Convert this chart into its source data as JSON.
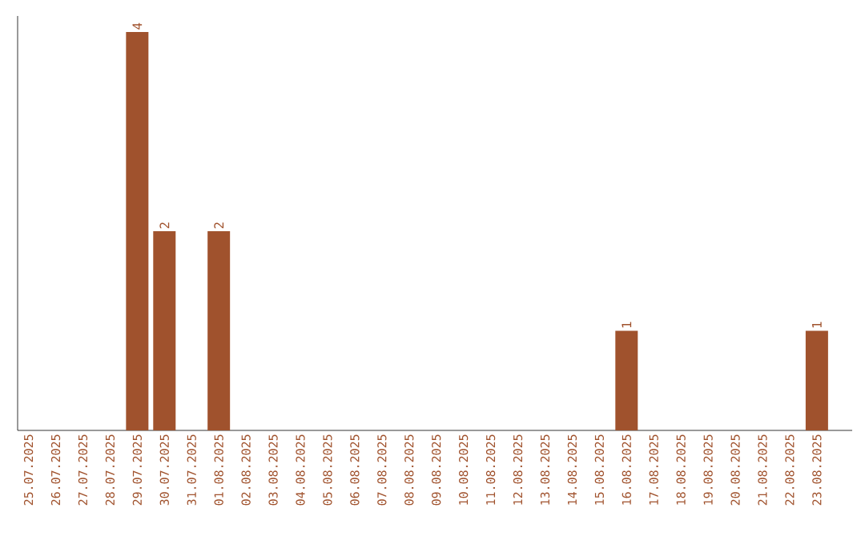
{
  "chart_data": {
    "type": "bar",
    "categories": [
      "25.07.2025",
      "26.07.2025",
      "27.07.2025",
      "28.07.2025",
      "29.07.2025",
      "30.07.2025",
      "31.07.2025",
      "01.08.2025",
      "02.08.2025",
      "03.08.2025",
      "04.08.2025",
      "05.08.2025",
      "06.08.2025",
      "07.08.2025",
      "08.08.2025",
      "09.08.2025",
      "10.08.2025",
      "11.08.2025",
      "12.08.2025",
      "13.08.2025",
      "14.08.2025",
      "15.08.2025",
      "16.08.2025",
      "17.08.2025",
      "18.08.2025",
      "19.08.2025",
      "20.08.2025",
      "21.08.2025",
      "22.08.2025",
      "23.08.2025"
    ],
    "values": [
      0,
      0,
      0,
      0,
      4,
      2,
      0,
      2,
      0,
      0,
      0,
      0,
      0,
      0,
      0,
      0,
      0,
      0,
      0,
      0,
      0,
      0,
      1,
      0,
      0,
      0,
      0,
      0,
      0,
      1
    ],
    "value_labels": [
      null,
      null,
      null,
      null,
      "4",
      "2",
      null,
      "2",
      null,
      null,
      null,
      null,
      null,
      null,
      null,
      null,
      null,
      null,
      null,
      null,
      null,
      null,
      "1",
      null,
      null,
      null,
      null,
      null,
      null,
      "1"
    ],
    "color": "#a0522d",
    "grid": false
  }
}
